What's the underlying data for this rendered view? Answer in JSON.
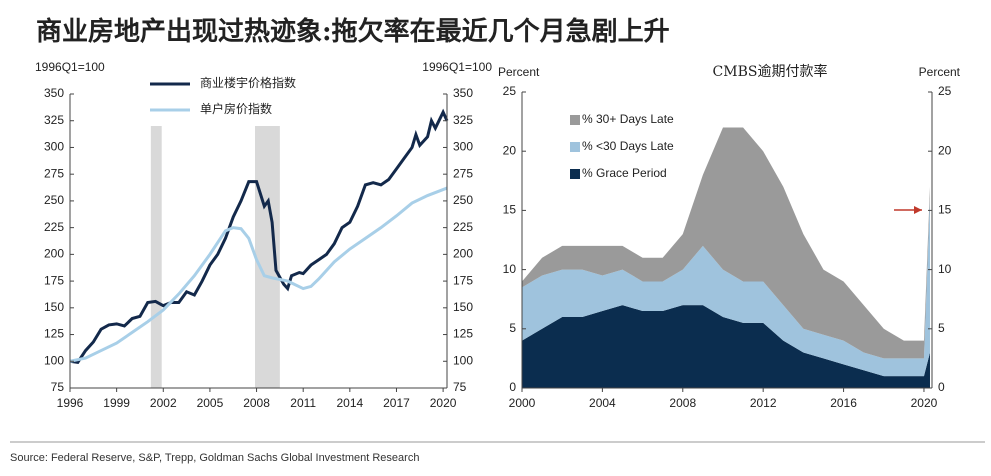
{
  "title": "商业房地产出现过热迹象:拖欠率在最近几个月急剧上升",
  "source": "Source: Federal Reserve, S&P, Trepp, Goldman Sachs Global Investment Research",
  "chart_data": [
    {
      "type": "line",
      "ylabel": "1996Q1=100",
      "y2label": "1996Q1=100",
      "xlim": [
        1996,
        2020.25
      ],
      "xticks": [
        1996,
        1999,
        2002,
        2005,
        2008,
        2011,
        2014,
        2017,
        2020
      ],
      "ylim": [
        75,
        350
      ],
      "yticks": [
        75,
        100,
        125,
        150,
        175,
        200,
        225,
        250,
        275,
        300,
        325,
        350
      ],
      "y2lim": [
        75,
        350
      ],
      "y2ticks": [
        75,
        100,
        125,
        150,
        175,
        200,
        225,
        250,
        275,
        300,
        325,
        350
      ],
      "legend": "upper left",
      "shaded": [
        [
          2001.2,
          2001.9
        ],
        [
          2007.9,
          2009.5
        ]
      ],
      "shade_color": "#d9d9d9",
      "series": [
        {
          "name": "商业楼宇价格指数",
          "color": "#13294b",
          "x": [
            1996,
            1996.5,
            1997,
            1997.5,
            1998,
            1998.5,
            1999,
            1999.5,
            2000,
            2000.5,
            2001,
            2001.5,
            2002,
            2002.5,
            2003,
            2003.5,
            2004,
            2004.5,
            2005,
            2005.5,
            2006,
            2006.5,
            2007,
            2007.5,
            2008,
            2008.5,
            2008.75,
            2009,
            2009.25,
            2009.75,
            2010,
            2010.25,
            2010.75,
            2011,
            2011.5,
            2012,
            2012.5,
            2013,
            2013.5,
            2014,
            2014.5,
            2015,
            2015.5,
            2016,
            2016.5,
            2017,
            2017.5,
            2018,
            2018.25,
            2018.5,
            2019,
            2019.25,
            2019.5,
            2020,
            2020.25
          ],
          "values": [
            100,
            99,
            110,
            118,
            130,
            134,
            135,
            133,
            140,
            142,
            155,
            156,
            152,
            155,
            155,
            165,
            162,
            175,
            190,
            200,
            215,
            235,
            250,
            268,
            268,
            245,
            250,
            230,
            185,
            172,
            168,
            180,
            183,
            182,
            190,
            195,
            200,
            210,
            225,
            230,
            245,
            265,
            267,
            265,
            270,
            280,
            290,
            300,
            312,
            302,
            310,
            325,
            318,
            333,
            325
          ]
        },
        {
          "name": "单户房价指数",
          "color": "#a8cfe8",
          "x": [
            1996,
            1997,
            1998,
            1999,
            2000,
            2001,
            2002,
            2003,
            2004,
            2005,
            2006,
            2006.5,
            2007,
            2007.5,
            2008,
            2008.5,
            2009,
            2010,
            2011,
            2011.5,
            2012,
            2013,
            2014,
            2015,
            2016,
            2017,
            2018,
            2019,
            2020.25
          ],
          "values": [
            100,
            103,
            110,
            117,
            127,
            137,
            148,
            163,
            180,
            200,
            222,
            225,
            224,
            215,
            195,
            180,
            178,
            175,
            168,
            170,
            177,
            193,
            205,
            215,
            225,
            236,
            248,
            255,
            262
          ]
        }
      ]
    },
    {
      "type": "stacked-area",
      "title": "CMBS逾期付款率",
      "ylabel": "Percent",
      "y2label": "Percent",
      "xlim": [
        2000,
        2020.4
      ],
      "xticks": [
        2000,
        2004,
        2008,
        2012,
        2016,
        2020
      ],
      "ylim": [
        0,
        25
      ],
      "yticks": [
        0,
        5,
        10,
        15,
        20,
        25
      ],
      "y2lim": [
        0,
        25
      ],
      "y2ticks": [
        0,
        5,
        10,
        15,
        20,
        25
      ],
      "legend": "upper left",
      "x": [
        2000,
        2001,
        2002,
        2003,
        2004,
        2005,
        2006,
        2007,
        2008,
        2009,
        2010,
        2011,
        2012,
        2013,
        2014,
        2015,
        2016,
        2017,
        2018,
        2019,
        2020,
        2020.3
      ],
      "series": [
        {
          "name": "% Grace Period",
          "color": "#0b2d4f",
          "values": [
            4,
            5,
            6,
            6,
            6.5,
            7,
            6.5,
            6.5,
            7,
            7,
            6,
            5.5,
            5.5,
            4,
            3,
            2.5,
            2,
            1.5,
            1,
            1,
            1,
            3
          ]
        },
        {
          "name": "% <30 Days Late",
          "color": "#9fc3dd",
          "values": [
            4.5,
            4.5,
            4,
            4,
            3,
            3,
            2.5,
            2.5,
            3,
            5,
            4,
            3.5,
            3.5,
            3,
            2,
            2,
            2,
            1.5,
            1.5,
            1.5,
            1.5,
            13
          ]
        },
        {
          "name": "% 30+ Days Late",
          "color": "#9a9a9a",
          "values": [
            0.5,
            1.5,
            2,
            2,
            2.5,
            2,
            2,
            2,
            3,
            6,
            12,
            13,
            11,
            10,
            8,
            5.5,
            5,
            4,
            2.5,
            1.5,
            1.5,
            1
          ]
        }
      ]
    }
  ]
}
